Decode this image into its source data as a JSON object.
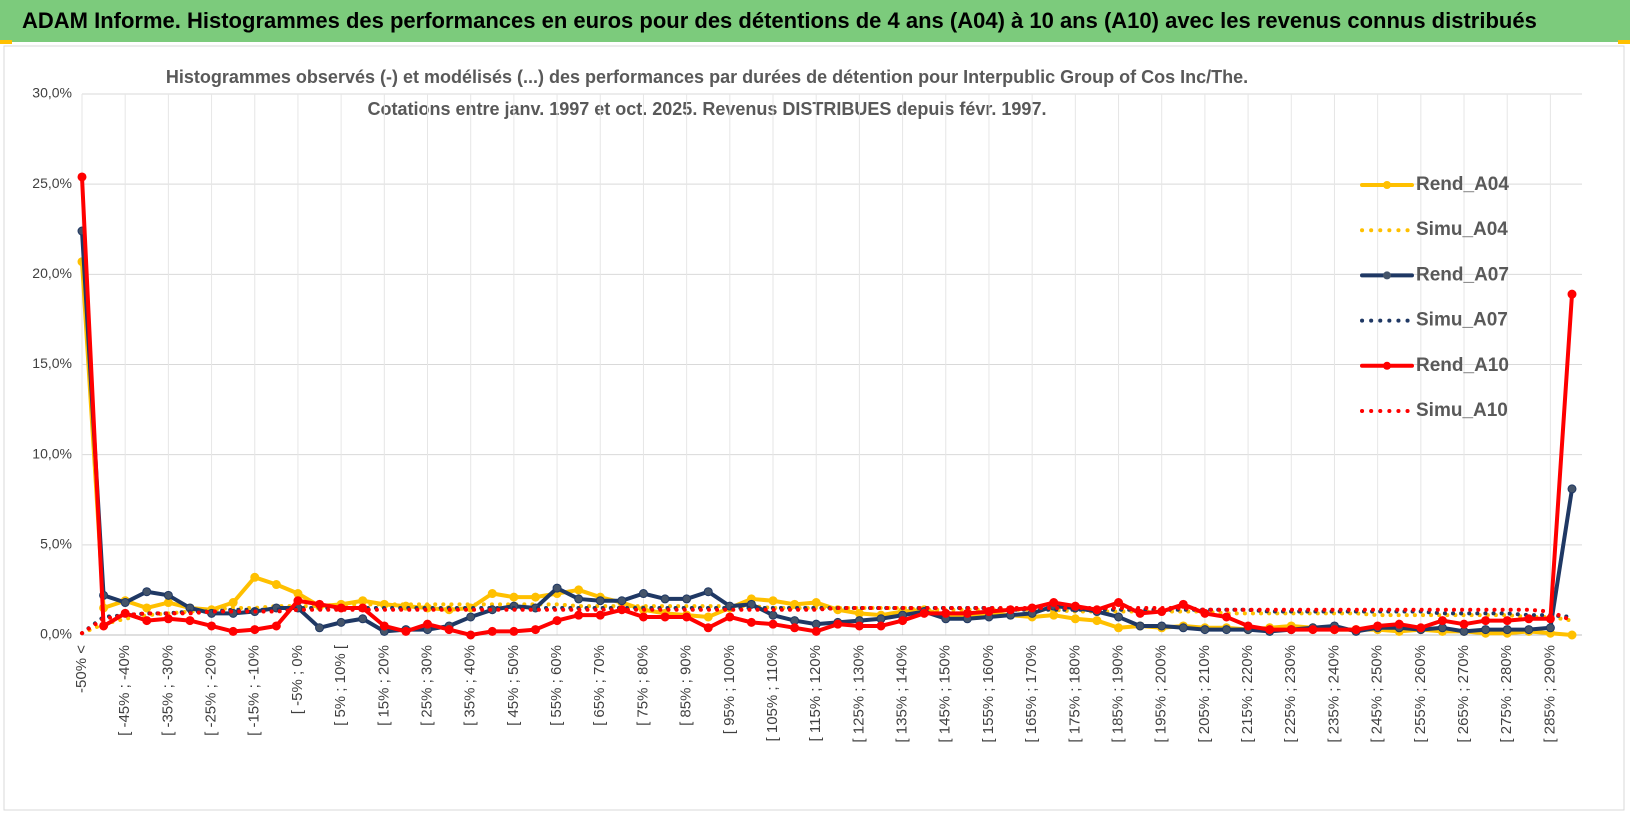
{
  "header": {
    "title": "ADAM Informe. Histogrammes des performances en euros pour des détentions de 4 ans (A04) à 10 ans (A10) avec les revenus connus distribués"
  },
  "chart_data": {
    "type": "line",
    "title": "Histogrammes observés (-) et modélisés (...) des performances par durées de détention pour Interpublic Group of Cos Inc/The.",
    "subtitle": "Cotations entre janv. 1997 et oct. 2025. Revenus DISTRIBUES depuis févr. 1997.",
    "categories": [
      "-50% <",
      null,
      "[ -45% ; -40%",
      null,
      "[ -35% ; -30%",
      null,
      "[ -25% ; -20%",
      null,
      "[ -15% ; -10%",
      null,
      "[ -5% ; 0%",
      null,
      "[ 5% ; 10% [",
      null,
      "[ 15% ; 20%",
      null,
      "[ 25% ; 30%",
      null,
      "[ 35% ; 40%",
      null,
      "[ 45% ; 50%",
      null,
      "[ 55% ; 60%",
      null,
      "[ 65% ; 70%",
      null,
      "[ 75% ; 80%",
      null,
      "[ 85% ; 90%",
      null,
      "[ 95% ; 100%",
      null,
      "[ 105% ; 110%",
      null,
      "[ 115% ; 120%",
      null,
      "[ 125% ; 130%",
      null,
      "[ 135% ; 140%",
      null,
      "[ 145% ; 150%",
      null,
      "[ 155% ; 160%",
      null,
      "[ 165% ; 170%",
      null,
      "[ 175% ; 180%",
      null,
      "[ 185% ; 190%",
      null,
      "[ 195% ; 200%",
      null,
      "[ 205% ; 210%",
      null,
      "[ 215% ; 220%",
      null,
      "[ 225% ; 230%",
      null,
      "[ 235% ; 240%",
      null,
      "[ 245% ; 250%",
      null,
      "[ 255% ; 260%",
      null,
      "[ 265% ; 270%",
      null,
      "[ 275% ; 280%",
      null,
      "[ 285% ; 290%",
      null
    ],
    "ylim": [
      0,
      30
    ],
    "yticks": [
      {
        "value": 0,
        "label": "0,0%"
      },
      {
        "value": 5,
        "label": "5,0%"
      },
      {
        "value": 10,
        "label": "10,0%"
      },
      {
        "value": 15,
        "label": "15,0%"
      },
      {
        "value": 20,
        "label": "20,0%"
      },
      {
        "value": 25,
        "label": "25,0%"
      },
      {
        "value": 30,
        "label": "30,0%"
      }
    ],
    "grid": true,
    "legend": "right",
    "series": [
      {
        "name": "Rend_A04",
        "color": "#ffc000",
        "style": "solid",
        "marker": true,
        "values": [
          20.7,
          1.5,
          1.9,
          1.5,
          1.8,
          1.5,
          1.4,
          1.8,
          3.2,
          2.8,
          2.3,
          1.6,
          1.7,
          1.9,
          1.7,
          1.6,
          1.5,
          1.4,
          1.5,
          2.3,
          2.1,
          2.1,
          2.3,
          2.5,
          2.1,
          1.8,
          1.4,
          1.2,
          1.1,
          1.0,
          1.5,
          2.0,
          1.9,
          1.7,
          1.8,
          1.4,
          1.2,
          1.1,
          1.3,
          1.4,
          1.1,
          1.1,
          1.2,
          1.1,
          1.0,
          1.1,
          0.9,
          0.8,
          0.4,
          0.5,
          0.4,
          0.5,
          0.4,
          0.4,
          0.3,
          0.4,
          0.5,
          0.4,
          0.3,
          0.3,
          0.3,
          0.2,
          0.3,
          0.2,
          0.2,
          0.1,
          0.1,
          0.2,
          0.1,
          0.0
        ]
      },
      {
        "name": "Simu_A04",
        "color": "#ffc000",
        "style": "dotted",
        "marker": false,
        "values": [
          0.1,
          0.6,
          0.9,
          1.1,
          1.2,
          1.3,
          1.4,
          1.5,
          1.5,
          1.6,
          1.6,
          1.6,
          1.7,
          1.7,
          1.7,
          1.7,
          1.7,
          1.7,
          1.7,
          1.7,
          1.7,
          1.7,
          1.7,
          1.6,
          1.6,
          1.6,
          1.6,
          1.6,
          1.6,
          1.6,
          1.6,
          1.6,
          1.5,
          1.5,
          1.5,
          1.5,
          1.5,
          1.5,
          1.5,
          1.4,
          1.4,
          1.4,
          1.4,
          1.4,
          1.4,
          1.4,
          1.3,
          1.3,
          1.3,
          1.3,
          1.3,
          1.3,
          1.3,
          1.2,
          1.2,
          1.2,
          1.2,
          1.2,
          1.2,
          1.2,
          1.1,
          1.1,
          1.1,
          1.1,
          1.1,
          1.1,
          1.1,
          1.0,
          1.0,
          0.8
        ]
      },
      {
        "name": "Rend_A07",
        "color": "#1f3864",
        "style": "solid",
        "marker": true,
        "values": [
          22.4,
          2.2,
          1.8,
          2.4,
          2.2,
          1.5,
          1.2,
          1.2,
          1.3,
          1.5,
          1.5,
          0.4,
          0.7,
          0.9,
          0.2,
          0.3,
          0.3,
          0.5,
          1.0,
          1.4,
          1.6,
          1.5,
          2.6,
          2.0,
          1.9,
          1.9,
          2.3,
          2.0,
          2.0,
          2.4,
          1.6,
          1.7,
          1.1,
          0.8,
          0.6,
          0.7,
          0.8,
          0.9,
          1.1,
          1.3,
          0.9,
          0.9,
          1.0,
          1.1,
          1.2,
          1.6,
          1.5,
          1.3,
          1.0,
          0.5,
          0.5,
          0.4,
          0.3,
          0.3,
          0.3,
          0.2,
          0.3,
          0.4,
          0.5,
          0.2,
          0.4,
          0.4,
          0.3,
          0.4,
          0.2,
          0.3,
          0.3,
          0.3,
          0.4,
          8.1
        ]
      },
      {
        "name": "Simu_A07",
        "color": "#1f3864",
        "style": "dotted",
        "marker": false,
        "values": [
          0.1,
          1.0,
          1.1,
          1.2,
          1.2,
          1.3,
          1.3,
          1.4,
          1.4,
          1.4,
          1.5,
          1.5,
          1.5,
          1.5,
          1.5,
          1.5,
          1.5,
          1.5,
          1.5,
          1.5,
          1.5,
          1.5,
          1.5,
          1.5,
          1.5,
          1.5,
          1.5,
          1.5,
          1.5,
          1.5,
          1.5,
          1.5,
          1.5,
          1.5,
          1.5,
          1.5,
          1.5,
          1.5,
          1.5,
          1.5,
          1.5,
          1.5,
          1.5,
          1.4,
          1.4,
          1.4,
          1.4,
          1.4,
          1.4,
          1.4,
          1.4,
          1.4,
          1.4,
          1.4,
          1.4,
          1.3,
          1.3,
          1.3,
          1.3,
          1.3,
          1.3,
          1.3,
          1.3,
          1.2,
          1.2,
          1.2,
          1.2,
          1.1,
          1.1,
          1.0
        ]
      },
      {
        "name": "Rend_A10",
        "color": "#ff0000",
        "style": "solid",
        "marker": true,
        "values": [
          25.4,
          0.5,
          1.2,
          0.8,
          0.9,
          0.8,
          0.5,
          0.2,
          0.3,
          0.5,
          1.9,
          1.7,
          1.5,
          1.5,
          0.5,
          0.2,
          0.6,
          0.3,
          0.0,
          0.2,
          0.2,
          0.3,
          0.8,
          1.1,
          1.1,
          1.4,
          1.0,
          1.0,
          1.0,
          0.4,
          1.0,
          0.7,
          0.6,
          0.4,
          0.2,
          0.6,
          0.5,
          0.5,
          0.8,
          1.2,
          1.2,
          1.2,
          1.3,
          1.4,
          1.5,
          1.8,
          1.6,
          1.4,
          1.8,
          1.2,
          1.3,
          1.7,
          1.2,
          1.0,
          0.5,
          0.3,
          0.3,
          0.3,
          0.3,
          0.3,
          0.5,
          0.6,
          0.4,
          0.8,
          0.6,
          0.8,
          0.8,
          0.9,
          0.9,
          18.9
        ]
      },
      {
        "name": "Simu_A10",
        "color": "#ff0000",
        "style": "dotted",
        "marker": false,
        "values": [
          0.1,
          0.9,
          1.1,
          1.2,
          1.2,
          1.2,
          1.3,
          1.3,
          1.3,
          1.3,
          1.4,
          1.4,
          1.4,
          1.4,
          1.4,
          1.4,
          1.4,
          1.4,
          1.4,
          1.4,
          1.4,
          1.4,
          1.4,
          1.4,
          1.4,
          1.4,
          1.4,
          1.4,
          1.4,
          1.4,
          1.4,
          1.4,
          1.4,
          1.4,
          1.4,
          1.5,
          1.5,
          1.5,
          1.5,
          1.5,
          1.5,
          1.5,
          1.5,
          1.5,
          1.5,
          1.5,
          1.5,
          1.5,
          1.5,
          1.5,
          1.5,
          1.5,
          1.4,
          1.4,
          1.4,
          1.4,
          1.4,
          1.4,
          1.4,
          1.4,
          1.4,
          1.4,
          1.4,
          1.4,
          1.4,
          1.4,
          1.4,
          1.4,
          1.3,
          0.8
        ]
      }
    ]
  }
}
